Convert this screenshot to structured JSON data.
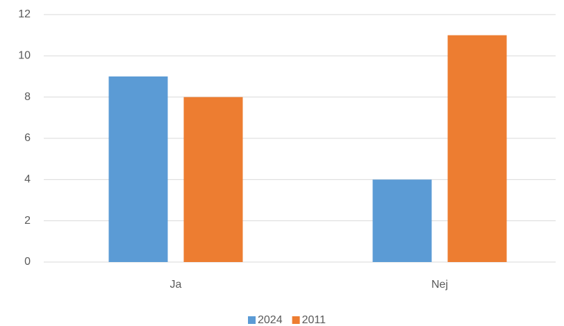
{
  "chart_data": {
    "type": "bar",
    "categories": [
      "Ja",
      "Nej"
    ],
    "series": [
      {
        "name": "2024",
        "color": "#5b9bd5",
        "values": [
          9,
          4
        ]
      },
      {
        "name": "2011",
        "color": "#ed7d31",
        "values": [
          8,
          11
        ]
      }
    ],
    "ylim": [
      0,
      12
    ],
    "yticks": [
      0,
      2,
      4,
      6,
      8,
      10,
      12
    ],
    "grid": true,
    "legend": "bottom"
  }
}
